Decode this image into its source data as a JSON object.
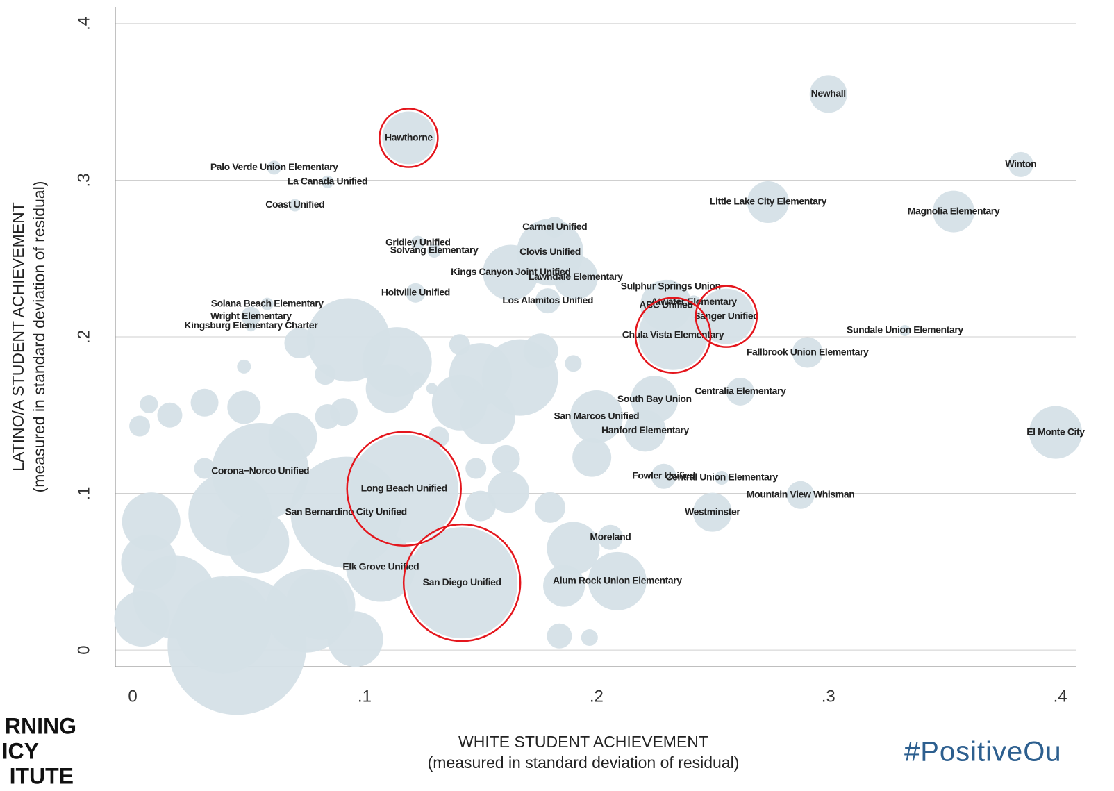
{
  "chart_data": {
    "type": "bubble",
    "xlabel": [
      "WHITE STUDENT ACHIEVEMENT",
      "(measured in standard deviation of residual)"
    ],
    "ylabel": [
      "LATINO/A STUDENT ACHIEVEMENT",
      "(measured in standard deviation of residual)"
    ],
    "logo": [
      "RNING",
      "ICY",
      "ITUTE"
    ],
    "hashtag": "#PositiveOu",
    "xlim": [
      -0.0075,
      0.407
    ],
    "ylim": [
      -0.0106,
      0.4106
    ],
    "xticks": [
      0,
      {
        "value": 0.1,
        "label": ".1"
      },
      {
        "value": 0.2,
        "label": ".2"
      },
      {
        "value": 0.3,
        "label": ".3"
      },
      {
        "value": 0.4,
        "label": ".4"
      }
    ],
    "yticks": [
      0,
      {
        "value": 0.1,
        "label": ".1"
      },
      {
        "value": 0.2,
        "label": ".2"
      },
      {
        "value": 0.3,
        "label": ".3"
      },
      {
        "value": 0.4,
        "label": ".4"
      }
    ],
    "grid": true,
    "color": "#d5e0e7",
    "highlight_color": "#e4161d",
    "labels": [
      null,
      null,
      null,
      null,
      null,
      null,
      null,
      null,
      null,
      null,
      null,
      null,
      null,
      null,
      null,
      null,
      null,
      null,
      null,
      null,
      null,
      null,
      null,
      null,
      null,
      null,
      null,
      null,
      null,
      null,
      null,
      null,
      null,
      null,
      null,
      null,
      null,
      null,
      null,
      null,
      null,
      null,
      null,
      null,
      null,
      null,
      "Newhall",
      "Hawthorne",
      "Palo Verde Union Elementary",
      "La Canada Unified",
      "Coast Unified",
      "Winton",
      "Little Lake City Elementary",
      "Magnolia Elementary",
      "Carmel Unified",
      "Gridley Unified",
      "Solvang Elementary",
      "Clovis Unified",
      "Kings Canyon Joint Unified",
      "Lawndale Elementary",
      "Sulphur Springs Union",
      "ABC Unified",
      "Holtville Unified",
      "Los Alamitos Unified",
      "Solana Beach Elementary",
      "Wright Elementary",
      "Kingsburg Elementary Charter",
      "Atwater Elementary",
      "Sanger Unified",
      "Chula Vista Elementary",
      "Sundale Union Elementary",
      "Fallbrook Union Elementary",
      "Centralia Elementary",
      "South Bay Union",
      "San Marcos Unified",
      "Hanford Elementary",
      "El Monte City",
      "Fowler Unified",
      "Central Union Elementary",
      "Mountain View Whisman",
      "Westminster",
      "Corona−Norco Unified",
      "Long Beach Unified",
      "San Bernardino City Unified",
      "Moreland",
      "Elk Grove Unified",
      "San Diego Unified",
      "Alum Rock Union Elementary"
    ],
    "x": [
      0.093,
      0.114,
      0.167,
      0.176,
      0.141,
      0.19,
      0.15,
      0.111,
      0.069,
      0.091,
      0.084,
      0.048,
      0.031,
      0.016,
      0.007,
      0.003,
      0.048,
      0.072,
      0.083,
      0.132,
      0.141,
      0.153,
      0.161,
      0.162,
      0.15,
      0.18,
      0.19,
      0.198,
      0.186,
      0.184,
      0.197,
      0.008,
      0.042,
      0.054,
      0.007,
      0.018,
      0.039,
      0.004,
      0.075,
      0.096,
      0.081,
      0.031,
      0.148,
      0.123,
      0.129,
      0.045,
      0.3,
      0.119,
      0.061,
      0.084,
      0.07,
      0.383,
      0.274,
      0.354,
      0.182,
      0.123,
      0.13,
      0.18,
      0.163,
      0.191,
      0.232,
      0.23,
      0.122,
      0.179,
      0.058,
      0.051,
      0.051,
      0.242,
      0.256,
      0.233,
      0.333,
      0.291,
      0.262,
      0.225,
      0.2,
      0.221,
      0.398,
      0.229,
      0.254,
      0.288,
      0.25,
      0.055,
      0.117,
      0.092,
      0.206,
      0.107,
      0.142,
      0.209
    ],
    "values": [
      0.198,
      0.184,
      0.174,
      0.191,
      0.195,
      0.183,
      0.176,
      0.167,
      0.136,
      0.152,
      0.149,
      0.155,
      0.158,
      0.15,
      0.157,
      0.143,
      0.181,
      0.196,
      0.176,
      0.136,
      0.158,
      0.149,
      0.122,
      0.101,
      0.092,
      0.091,
      0.065,
      0.123,
      0.041,
      0.009,
      0.008,
      0.082,
      0.087,
      0.069,
      0.056,
      0.034,
      0.016,
      0.02,
      0.025,
      0.007,
      0.029,
      0.116,
      0.116,
      0.173,
      0.167,
      0.003,
      0.355,
      0.327,
      0.308,
      0.299,
      0.284,
      0.31,
      0.286,
      0.28,
      0.27,
      0.26,
      0.255,
      0.254,
      0.241,
      0.238,
      0.232,
      0.22,
      0.228,
      0.223,
      0.221,
      0.213,
      0.207,
      0.222,
      0.213,
      0.201,
      0.204,
      0.19,
      0.165,
      0.16,
      0.149,
      0.14,
      0.139,
      0.111,
      0.11,
      0.099,
      0.088,
      0.114,
      0.103,
      0.088,
      0.072,
      0.053,
      0.043,
      0.044
    ],
    "sizes": [
      60,
      50,
      55,
      25,
      15,
      12,
      45,
      35,
      35,
      20,
      18,
      24,
      20,
      18,
      13,
      15,
      10,
      22,
      15,
      15,
      40,
      40,
      20,
      30,
      22,
      22,
      38,
      28,
      30,
      18,
      12,
      42,
      60,
      45,
      40,
      60,
      70,
      40,
      60,
      40,
      50,
      15,
      15,
      10,
      8,
      100,
      27,
      38,
      10,
      9,
      9,
      18,
      30,
      30,
      15,
      10,
      10,
      48,
      40,
      32,
      10,
      37,
      14,
      18,
      9,
      14,
      8,
      10,
      40,
      50,
      8,
      22,
      20,
      34,
      38,
      30,
      38,
      18,
      10,
      20,
      28,
      70,
      78,
      80,
      18,
      50,
      80,
      42
    ],
    "highlight": [
      false,
      false,
      false,
      false,
      false,
      false,
      false,
      false,
      false,
      false,
      false,
      false,
      false,
      false,
      false,
      false,
      false,
      false,
      false,
      false,
      false,
      false,
      false,
      false,
      false,
      false,
      false,
      false,
      false,
      false,
      false,
      false,
      false,
      false,
      false,
      false,
      false,
      false,
      false,
      false,
      false,
      false,
      false,
      false,
      false,
      false,
      false,
      true,
      false,
      false,
      false,
      false,
      false,
      false,
      false,
      false,
      false,
      false,
      false,
      false,
      false,
      false,
      false,
      false,
      false,
      false,
      false,
      false,
      true,
      true,
      false,
      false,
      false,
      false,
      false,
      false,
      false,
      false,
      false,
      false,
      false,
      false,
      true,
      false,
      false,
      false,
      true,
      false
    ]
  }
}
